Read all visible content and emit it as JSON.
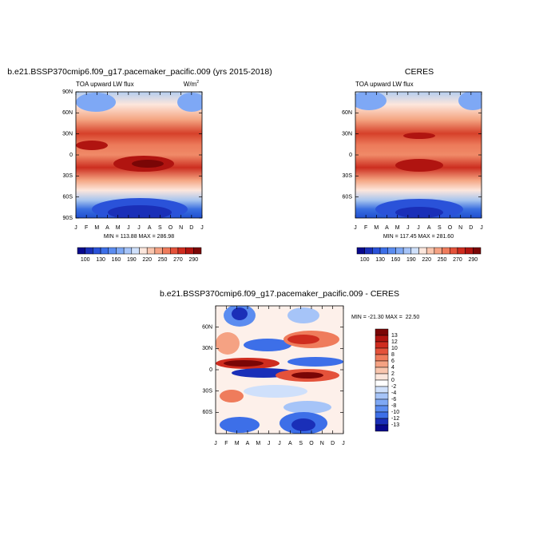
{
  "chart_data": [
    {
      "type": "contour",
      "title": "b.e21.BSSP370cmip6.f09_g17.pacemaker_pacific.009 (yrs 2015-2018)",
      "subtitle": "TOA upward LW flux",
      "units": "W/m",
      "units_sup": "2",
      "categories": [
        "J",
        "F",
        "M",
        "A",
        "M",
        "J",
        "J",
        "A",
        "S",
        "O",
        "N",
        "D",
        "J"
      ],
      "ylim": [
        -90,
        90
      ],
      "yticks": [
        {
          "value": 90,
          "label": "90N"
        },
        {
          "value": 60,
          "label": "60N"
        },
        {
          "value": 30,
          "label": "30N"
        },
        0,
        {
          "value": -30,
          "label": "30S"
        },
        {
          "value": -60,
          "label": "60S"
        },
        {
          "value": -90,
          "label": "90S"
        }
      ],
      "stats": "MIN = 113.88 MAX = 286.98",
      "colorbar": {
        "colors": [
          "#08088c",
          "#1a2fb8",
          "#2a52d9",
          "#3d6fe8",
          "#5b8cf0",
          "#7ea8f5",
          "#a6c4f8",
          "#cfe0fb",
          "#fbe6dc",
          "#f9c5ad",
          "#f5a283",
          "#ef7c5c",
          "#e4523a",
          "#cf2c1f",
          "#b01410",
          "#7a0606"
        ],
        "labels": [
          100,
          130,
          160,
          190,
          220,
          250,
          270,
          290
        ]
      }
    },
    {
      "type": "contour",
      "title": "CERES",
      "subtitle": "TOA upward LW flux",
      "categories": [
        "J",
        "F",
        "M",
        "A",
        "M",
        "J",
        "J",
        "A",
        "S",
        "O",
        "N",
        "D",
        "J"
      ],
      "ylim": [
        -90,
        90
      ],
      "yticks": [
        {
          "value": 60,
          "label": "60N"
        },
        {
          "value": 30,
          "label": "30N"
        },
        0,
        {
          "value": -30,
          "label": "30S"
        },
        {
          "value": -60,
          "label": "60S"
        }
      ],
      "stats": "MIN = 117.45 MAX = 281.60",
      "colorbar": {
        "colors": [
          "#08088c",
          "#1a2fb8",
          "#2a52d9",
          "#3d6fe8",
          "#5b8cf0",
          "#7ea8f5",
          "#a6c4f8",
          "#cfe0fb",
          "#fbe6dc",
          "#f9c5ad",
          "#f5a283",
          "#ef7c5c",
          "#e4523a",
          "#cf2c1f",
          "#b01410",
          "#7a0606"
        ],
        "labels": [
          100,
          130,
          160,
          190,
          220,
          250,
          270,
          290
        ]
      }
    },
    {
      "type": "contour",
      "title": "b.e21.BSSP370cmip6.f09_g17.pacemaker_pacific.009 - CERES",
      "categories": [
        "J",
        "F",
        "M",
        "A",
        "M",
        "J",
        "J",
        "A",
        "S",
        "O",
        "N",
        "D",
        "J"
      ],
      "ylim": [
        -90,
        90
      ],
      "yticks": [
        {
          "value": 60,
          "label": "60N"
        },
        {
          "value": 30,
          "label": "30N"
        },
        0,
        {
          "value": -30,
          "label": "30S"
        },
        {
          "value": -60,
          "label": "60S"
        }
      ],
      "stats": "MIN = -21.30 MAX =  22.50",
      "colorbar": {
        "colors": [
          "#7a0606",
          "#b01410",
          "#cf2c1f",
          "#e4523a",
          "#ef7c5c",
          "#f5a283",
          "#f9c5ad",
          "#fbe6dc",
          "#ffffff",
          "#cfe0fb",
          "#a6c4f8",
          "#7ea8f5",
          "#5b8cf0",
          "#3d6fe8",
          "#1a2fb8",
          "#08088c"
        ],
        "labels": [
          13,
          12,
          10,
          8,
          6,
          4,
          2,
          0,
          -2,
          -4,
          -6,
          -8,
          -10,
          -12,
          -13
        ]
      }
    }
  ]
}
